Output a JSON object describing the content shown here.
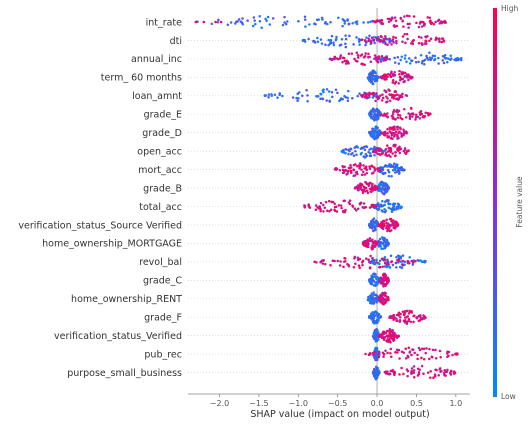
{
  "chart_data": {
    "type": "scatter",
    "subtype": "shap-beeswarm-summary",
    "xlabel": "SHAP value (impact on model output)",
    "xlim": [
      -2.4,
      1.18
    ],
    "xticks": [
      -2.0,
      -1.5,
      -1.0,
      -0.5,
      0.0,
      0.5,
      1.0
    ],
    "xtick_labels": [
      "−2.0",
      "−1.5",
      "−1.0",
      "−0.5",
      "0.0",
      "0.5",
      "1.0"
    ],
    "grid": false,
    "colorbar": {
      "label": "Feature value",
      "high_label": "High",
      "low_label": "Low",
      "low_color": "#008bfb",
      "high_color": "#ff0052"
    },
    "features": [
      {
        "name": "int_rate",
        "low_range": [
          -2.3,
          0.05
        ],
        "high_range": [
          -0.05,
          0.88
        ],
        "outliers_low": [
          -2.3,
          -2.2,
          -2.05,
          -1.98
        ]
      },
      {
        "name": "dti",
        "low_range": [
          -0.95,
          0.2
        ],
        "high_range": [
          -0.2,
          0.92
        ]
      },
      {
        "name": "annual_inc",
        "low_range": [
          0.0,
          1.1
        ],
        "high_range": [
          -0.6,
          0.15
        ]
      },
      {
        "name": "term_ 60 months",
        "low_range": [
          -0.12,
          0.02
        ],
        "high_range": [
          0.05,
          0.45
        ]
      },
      {
        "name": "loan_amnt",
        "low_range": [
          -1.45,
          0.05
        ],
        "high_range": [
          -0.2,
          0.38
        ]
      },
      {
        "name": "grade_E",
        "low_range": [
          -0.1,
          0.05
        ],
        "high_range": [
          0.05,
          0.68
        ]
      },
      {
        "name": "grade_D",
        "low_range": [
          -0.1,
          0.05
        ],
        "high_range": [
          0.05,
          0.38
        ]
      },
      {
        "name": "open_acc",
        "low_range": [
          -0.45,
          0.1
        ],
        "high_range": [
          -0.05,
          0.42
        ]
      },
      {
        "name": "mort_acc",
        "low_range": [
          0.0,
          0.35
        ],
        "high_range": [
          -0.55,
          0.05
        ]
      },
      {
        "name": "grade_B",
        "low_range": [
          0.0,
          0.15
        ],
        "high_range": [
          -0.28,
          0.0
        ]
      },
      {
        "name": "total_acc",
        "low_range": [
          -0.05,
          0.32
        ],
        "high_range": [
          -0.95,
          0.0
        ]
      },
      {
        "name": "verification_status_Source Verified",
        "low_range": [
          -0.1,
          0.02
        ],
        "high_range": [
          0.02,
          0.28
        ]
      },
      {
        "name": "home_ownership_MORTGAGE",
        "low_range": [
          0.0,
          0.15
        ],
        "high_range": [
          -0.18,
          0.0
        ]
      },
      {
        "name": "revol_bal",
        "low_range": [
          -0.1,
          0.62
        ],
        "high_range": [
          -0.8,
          0.5
        ]
      },
      {
        "name": "grade_C",
        "low_range": [
          -0.1,
          0.03
        ],
        "high_range": [
          0.03,
          0.15
        ]
      },
      {
        "name": "home_ownership_RENT",
        "low_range": [
          -0.12,
          0.02
        ],
        "high_range": [
          0.02,
          0.15
        ]
      },
      {
        "name": "grade_F",
        "low_range": [
          -0.1,
          0.05
        ],
        "high_range": [
          0.15,
          0.62
        ]
      },
      {
        "name": "verification_status_Verified",
        "low_range": [
          -0.05,
          0.03
        ],
        "high_range": [
          0.03,
          0.28
        ]
      },
      {
        "name": "pub_rec",
        "low_range": [
          -0.05,
          0.03
        ],
        "high_range": [
          -0.15,
          1.02
        ]
      },
      {
        "name": "purpose_small_business",
        "low_range": [
          -0.05,
          0.03
        ],
        "high_range": [
          0.1,
          1.0
        ]
      }
    ]
  }
}
